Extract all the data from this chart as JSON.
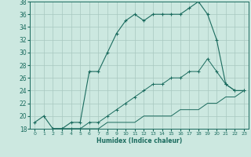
{
  "xlabel": "Humidex (Indice chaleur)",
  "background_color": "#cce8e0",
  "grid_color": "#a8c8c0",
  "line_color": "#1a6b5e",
  "xlim": [
    -0.5,
    23.5
  ],
  "ylim": [
    18,
    38
  ],
  "xticks": [
    0,
    1,
    2,
    3,
    4,
    5,
    6,
    7,
    8,
    9,
    10,
    11,
    12,
    13,
    14,
    15,
    16,
    17,
    18,
    19,
    20,
    21,
    22,
    23
  ],
  "yticks": [
    18,
    20,
    22,
    24,
    26,
    28,
    30,
    32,
    34,
    36,
    38
  ],
  "line1_x": [
    0,
    1,
    2,
    3,
    4,
    5,
    6,
    7,
    8,
    9,
    10,
    11,
    12,
    13,
    14,
    15,
    16,
    17,
    18,
    19,
    20,
    21,
    22,
    23
  ],
  "line1_y": [
    19,
    20,
    18,
    18,
    19,
    19,
    27,
    27,
    30,
    33,
    35,
    36,
    35,
    36,
    36,
    36,
    36,
    37,
    38,
    36,
    32,
    25,
    24,
    24
  ],
  "line2_x": [
    2,
    3,
    4,
    5,
    6,
    7,
    8,
    9,
    10,
    11,
    12,
    13,
    14,
    15,
    16,
    17,
    18,
    19,
    20,
    21,
    22,
    23
  ],
  "line2_y": [
    18,
    18,
    18,
    18,
    18,
    18,
    19,
    19,
    19,
    19,
    20,
    20,
    20,
    20,
    21,
    21,
    21,
    22,
    22,
    23,
    23,
    24
  ],
  "line3_x": [
    2,
    3,
    4,
    5,
    6,
    7,
    8,
    9,
    10,
    11,
    12,
    13,
    14,
    15,
    16,
    17,
    18,
    19,
    20,
    21,
    22,
    23
  ],
  "line3_y": [
    18,
    18,
    18,
    18,
    19,
    19,
    20,
    21,
    22,
    23,
    24,
    25,
    25,
    26,
    26,
    27,
    27,
    29,
    27,
    25,
    24,
    24
  ]
}
